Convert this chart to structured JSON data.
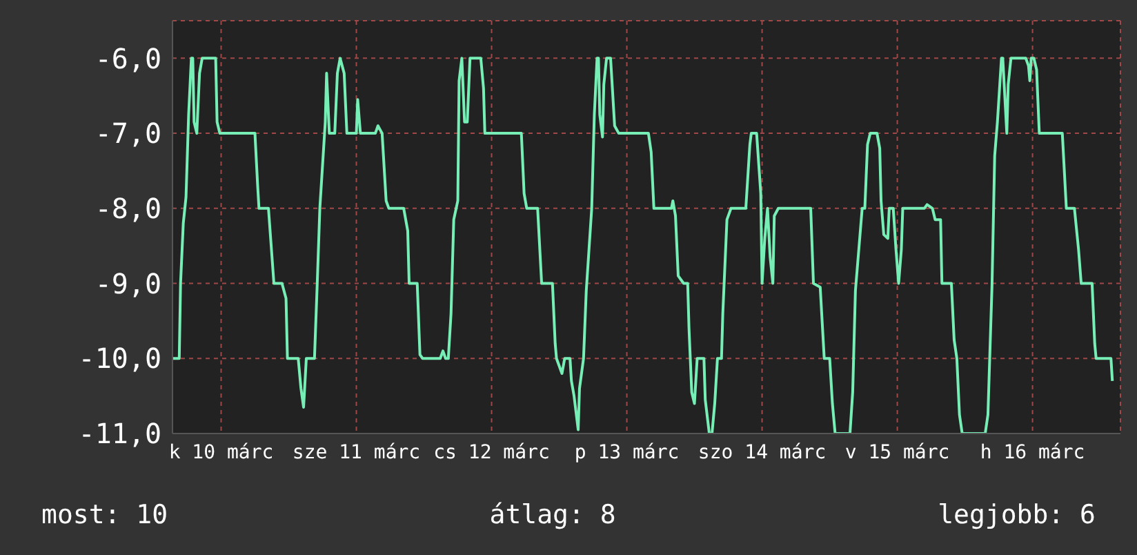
{
  "chart_data": {
    "type": "line",
    "x": [
      "--03-10T03:22",
      "--03-10T04:34",
      "--03-10T04:48",
      "--03-10T05:17",
      "--03-10T05:46",
      "--03-10T06:14",
      "--03-10T06:43",
      "--03-10T06:58",
      "--03-10T07:12",
      "--03-10T07:41",
      "--03-10T08:10",
      "--03-10T08:38",
      "--03-10T11:02",
      "--03-10T11:17",
      "--03-10T11:46",
      "--03-10T18:00",
      "--03-10T18:29",
      "--03-10T18:43",
      "--03-10T20:24",
      "--03-10T20:53",
      "--03-10T21:22",
      "--03-10T22:48",
      "--03-10T23:31",
      "--03-10T23:46",
      "--03-11T01:41",
      "--03-11T02:10",
      "--03-11T02:38",
      "--03-11T03:07",
      "--03-11T04:34",
      "--03-11T05:02",
      "--03-11T05:31",
      "--03-11T06:29",
      "--03-11T06:43",
      "--03-11T07:12",
      "--03-11T08:10",
      "--03-11T08:38",
      "--03-11T09:07",
      "--03-11T09:50",
      "--03-11T10:19",
      "--03-11T12:00",
      "--03-11T12:14",
      "--03-11T12:43",
      "--03-11T15:22",
      "--03-11T15:50",
      "--03-11T16:34",
      "--03-11T17:17",
      "--03-11T17:46",
      "--03-11T20:24",
      "--03-11T21:07",
      "--03-11T21:22",
      "--03-11T22:48",
      "--03-11T23:17",
      "--03-11T23:46",
      "--03-12T02:53",
      "--03-12T03:22",
      "--03-12T03:50",
      "--03-12T04:19",
      "--03-12T04:48",
      "--03-12T05:17",
      "--03-12T06:00",
      "--03-12T06:14",
      "--03-12T06:43",
      "--03-12T07:12",
      "--03-12T07:41",
      "--03-12T08:10",
      "--03-12T10:05",
      "--03-12T10:34",
      "--03-12T10:48",
      "--03-12T17:17",
      "--03-12T17:46",
      "--03-12T18:14",
      "--03-12T20:10",
      "--03-12T20:53",
      "--03-12T22:48",
      "--03-12T23:17",
      "--03-12T23:31",
      "--03-13T00:29",
      "--03-13T00:58",
      "--03-13T01:55",
      "--03-13T02:10",
      "--03-13T02:38",
      "--03-13T03:22",
      "--03-13T03:36",
      "--03-13T04:19",
      "--03-13T04:48",
      "--03-13T05:46",
      "--03-13T06:14",
      "--03-13T06:43",
      "--03-13T06:58",
      "--03-13T07:12",
      "--03-13T07:41",
      "--03-13T07:55",
      "--03-13T08:24",
      "--03-13T09:07",
      "--03-13T09:50",
      "--03-13T10:34",
      "--03-13T15:50",
      "--03-13T16:19",
      "--03-13T16:48",
      "--03-13T19:55",
      "--03-13T20:10",
      "--03-13T20:38",
      "--03-13T21:07",
      "--03-13T22:05",
      "--03-13T22:48",
      "--03-13T23:02",
      "--03-13T23:31",
      "--03-14T00:00",
      "--03-14T00:29",
      "--03-14T01:41",
      "--03-14T01:55",
      "--03-14T02:38",
      "--03-14T03:07",
      "--03-14T03:36",
      "--03-14T04:05",
      "--03-14T04:48",
      "--03-14T05:02",
      "--03-14T05:46",
      "--03-14T06:29",
      "--03-14T09:07",
      "--03-14T09:50",
      "--03-14T10:05",
      "--03-14T11:02",
      "--03-14T11:46",
      "--03-14T12:00",
      "--03-14T12:29",
      "--03-14T12:58",
      "--03-14T13:26",
      "--03-14T13:55",
      "--03-14T14:10",
      "--03-14T14:53",
      "--03-14T20:38",
      "--03-14T21:07",
      "--03-14T22:19",
      "--03-14T23:02",
      "--03-15T00:00",
      "--03-15T00:29",
      "--03-15T00:58",
      "--03-15T03:36",
      "--03-15T04:05",
      "--03-15T04:34",
      "--03-15T05:46",
      "--03-15T06:14",
      "--03-15T06:43",
      "--03-15T07:12",
      "--03-15T08:24",
      "--03-15T08:53",
      "--03-15T09:07",
      "--03-15T09:36",
      "--03-15T10:19",
      "--03-15T10:34",
      "--03-15T11:17",
      "--03-15T11:46",
      "--03-15T12:14",
      "--03-15T12:43",
      "--03-15T12:58",
      "--03-15T16:48",
      "--03-15T17:17",
      "--03-15T18:14",
      "--03-15T18:43",
      "--03-15T19:41",
      "--03-15T19:55",
      "--03-15T21:36",
      "--03-15T22:05",
      "--03-15T22:34",
      "--03-15T23:02",
      "--03-15T23:31",
      "--03-16T03:36",
      "--03-16T04:05",
      "--03-16T04:48",
      "--03-16T05:17",
      "--03-16T05:46",
      "--03-16T06:29",
      "--03-16T06:43",
      "--03-16T06:58",
      "--03-16T07:26",
      "--03-16T07:41",
      "--03-16T08:10",
      "--03-16T10:48",
      "--03-16T11:17",
      "--03-16T11:31",
      "--03-16T11:46",
      "--03-16T12:14",
      "--03-16T12:43",
      "--03-16T13:12",
      "--03-16T17:17",
      "--03-16T18:00",
      "--03-16T19:26",
      "--03-16T20:10",
      "--03-16T20:38",
      "--03-16T22:34",
      "--03-16T23:02",
      "--03-16T23:17",
      "--03-17T01:55",
      "--03-17T02:10"
    ],
    "series": [
      {
        "color": "#77eeb5",
        "values": [
          -10,
          -10,
          -9,
          -8.2,
          -7.85,
          -6.75,
          -6,
          -6,
          -6.85,
          -7,
          -6.2,
          -6,
          -6,
          -6.85,
          -7,
          -7,
          -7.7,
          -8,
          -8,
          -8.5,
          -9,
          -9,
          -9.2,
          -10,
          -10,
          -10.4,
          -10.65,
          -10,
          -10,
          -9.05,
          -8,
          -6.85,
          -6.2,
          -7,
          -7,
          -6.2,
          -6,
          -6.2,
          -7,
          -7,
          -6.55,
          -7,
          -7,
          -6.9,
          -7,
          -7.9,
          -8,
          -8,
          -8.3,
          -9,
          -9,
          -9.95,
          -10,
          -10,
          -9.9,
          -10,
          -10,
          -9.4,
          -8.15,
          -7.9,
          -6.3,
          -6,
          -6.85,
          -6.85,
          -6,
          -6,
          -6.4,
          -7,
          -7,
          -7.8,
          -8,
          -8,
          -9,
          -9,
          -9.8,
          -10,
          -10.2,
          -10,
          -10,
          -10.3,
          -10.5,
          -10.95,
          -10.4,
          -10,
          -9.1,
          -8,
          -6.75,
          -6,
          -6,
          -6.75,
          -7.05,
          -6.35,
          -6,
          -6,
          -6.9,
          -7,
          -7,
          -7.25,
          -8,
          -8,
          -7.9,
          -8.1,
          -8.9,
          -9,
          -9,
          -9.6,
          -10.45,
          -10.6,
          -10,
          -10,
          -10.55,
          -11,
          -11,
          -10.6,
          -10,
          -10,
          -9.4,
          -8.15,
          -8,
          -8,
          -7.15,
          -7,
          -7,
          -7.8,
          -9,
          -8.4,
          -8,
          -8.65,
          -9,
          -8.1,
          -8,
          -8,
          -9,
          -9.05,
          -10,
          -10,
          -10.6,
          -11,
          -11,
          -10.45,
          -9.1,
          -8,
          -8,
          -7.15,
          -7,
          -7,
          -7.2,
          -7.9,
          -8.35,
          -8.4,
          -8,
          -8,
          -8.55,
          -9,
          -8.55,
          -8,
          -8,
          -7.95,
          -8,
          -8.15,
          -8.15,
          -9,
          -9,
          -9.75,
          -10,
          -10.75,
          -11,
          -11,
          -10.75,
          -9.05,
          -7.3,
          -6.85,
          -6,
          -6,
          -6.35,
          -7,
          -6.35,
          -6,
          -6,
          -6.1,
          -6.3,
          -6,
          -6,
          -6.15,
          -7,
          -7,
          -8,
          -8,
          -8.55,
          -9,
          -9,
          -9.8,
          -10,
          -10,
          -10.3
        ]
      }
    ],
    "xlim": [
      "--03-10T03:22",
      "--03-17T03:36"
    ],
    "xticks": [
      {
        "value": "--03-10T12:00",
        "label": "k 10 márc"
      },
      {
        "value": "--03-11T12:00",
        "label": "sze 11 márc"
      },
      {
        "value": "--03-12T12:00",
        "label": "cs 12 márc"
      },
      {
        "value": "--03-13T12:00",
        "label": "p 13 márc"
      },
      {
        "value": "--03-14T12:00",
        "label": "szo 14 márc"
      },
      {
        "value": "--03-15T12:00",
        "label": "v 15 márc"
      },
      {
        "value": "--03-16T12:00",
        "label": "h 16 márc"
      }
    ],
    "ylim": [
      -11,
      -5.5
    ],
    "yticks": [
      {
        "value": -11,
        "label": "-11,0"
      },
      {
        "value": -10,
        "label": "-10,0"
      },
      {
        "value": -9,
        "label": "-9,0"
      },
      {
        "value": -8,
        "label": "-8,0"
      },
      {
        "value": -7,
        "label": "-7,0"
      },
      {
        "value": -6,
        "label": "-6,0"
      }
    ],
    "grid": true,
    "marker": "none",
    "line_style": "solid",
    "annotations": [
      "most: 10",
      "átlag: 8",
      "legjobb: 6"
    ]
  }
}
